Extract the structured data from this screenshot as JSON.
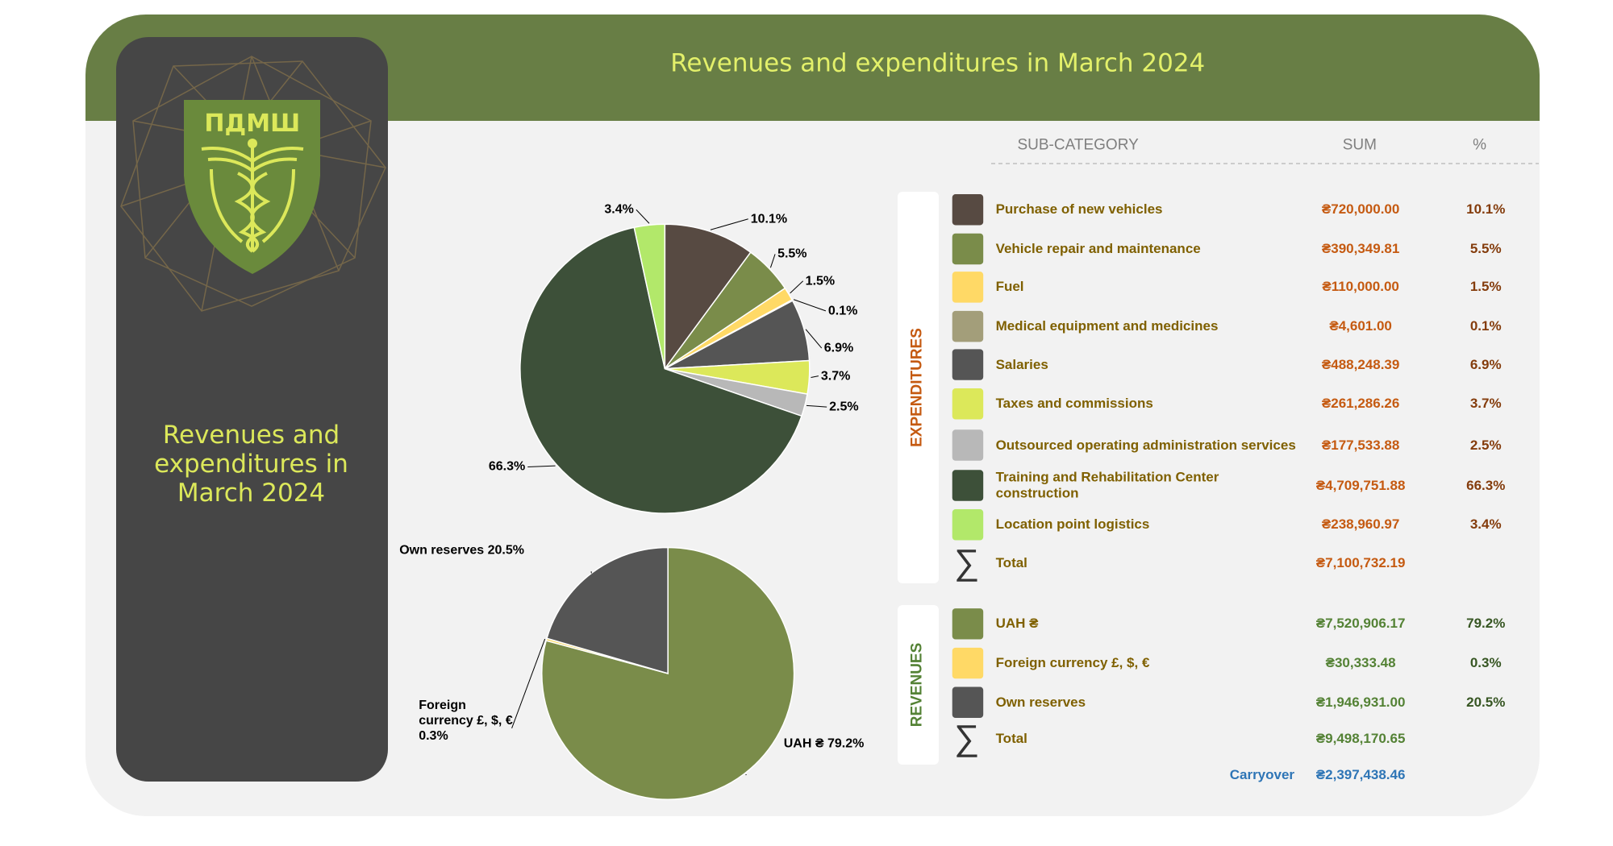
{
  "header": {
    "title": "Revenues and expenditures in March 2024"
  },
  "sidebar": {
    "logo_text": "ПДМШ",
    "title": "Revenues and expenditures in March 2024"
  },
  "chart_data": [
    {
      "type": "pie",
      "values": [
        10.1,
        5.5,
        1.5,
        0.1,
        6.9,
        3.7,
        2.5,
        66.3,
        3.4
      ],
      "value_labels": [
        "10.1%",
        "5.5%",
        "1.5%",
        "0.1%",
        "6.9%",
        "3.7%",
        "2.5%",
        "66.3%",
        "3.4%"
      ],
      "colors": [
        "#574a42",
        "#7a8c4a",
        "#ffd966",
        "#a39e7a",
        "#555555",
        "#dce85a",
        "#b8b8b8",
        "#3d5039",
        "#b2e86a"
      ]
    },
    {
      "type": "pie",
      "categories": [
        "UAH ₴",
        "Foreign currency £, $, €",
        "Own reserves"
      ],
      "values": [
        79.2,
        0.3,
        20.5
      ],
      "value_labels": [
        "79.2%",
        "0.3%",
        "20.5%"
      ],
      "colors": [
        "#7a8c4a",
        "#ffd966",
        "#555555"
      ]
    }
  ],
  "table": {
    "columns": [
      "SUB-CATEGORY",
      "SUM",
      "%"
    ],
    "expenditures": {
      "label": "EXPENDITURES",
      "rows": [
        [
          "Purchase of new vehicles",
          "₴720,000.00",
          "10.1%"
        ],
        [
          "Vehicle repair and maintenance",
          "₴390,349.81",
          "5.5%"
        ],
        [
          "Fuel",
          "₴110,000.00",
          "1.5%"
        ],
        [
          "Medical equipment and medicines",
          "₴4,601.00",
          "0.1%"
        ],
        [
          "Salaries",
          "₴488,248.39",
          "6.9%"
        ],
        [
          "Taxes and commissions",
          "₴261,286.26",
          "3.7%"
        ],
        [
          "Outsourced operating administration services",
          "₴177,533.88",
          "2.5%"
        ],
        [
          "Training and Rehabilitation Center construction",
          "₴4,709,751.88",
          "66.3%"
        ],
        [
          "Location point logistics",
          "₴238,960.97",
          "3.4%"
        ]
      ],
      "total": {
        "symbol": "∑",
        "label": "Total",
        "sum": "₴7,100,732.19"
      }
    },
    "revenues": {
      "label": "REVENUES",
      "rows": [
        [
          "UAH ₴",
          "₴7,520,906.17",
          "79.2%"
        ],
        [
          "Foreign currency £, $, €",
          "₴30,333.48",
          "0.3%"
        ],
        [
          "Own reserves",
          "₴1,946,931.00",
          "20.5%"
        ]
      ],
      "total": {
        "symbol": "∑",
        "label": "Total",
        "sum": "₴9,498,170.65"
      }
    },
    "carryover": {
      "label": "Carryover",
      "sum": "₴2,397,438.46"
    }
  }
}
